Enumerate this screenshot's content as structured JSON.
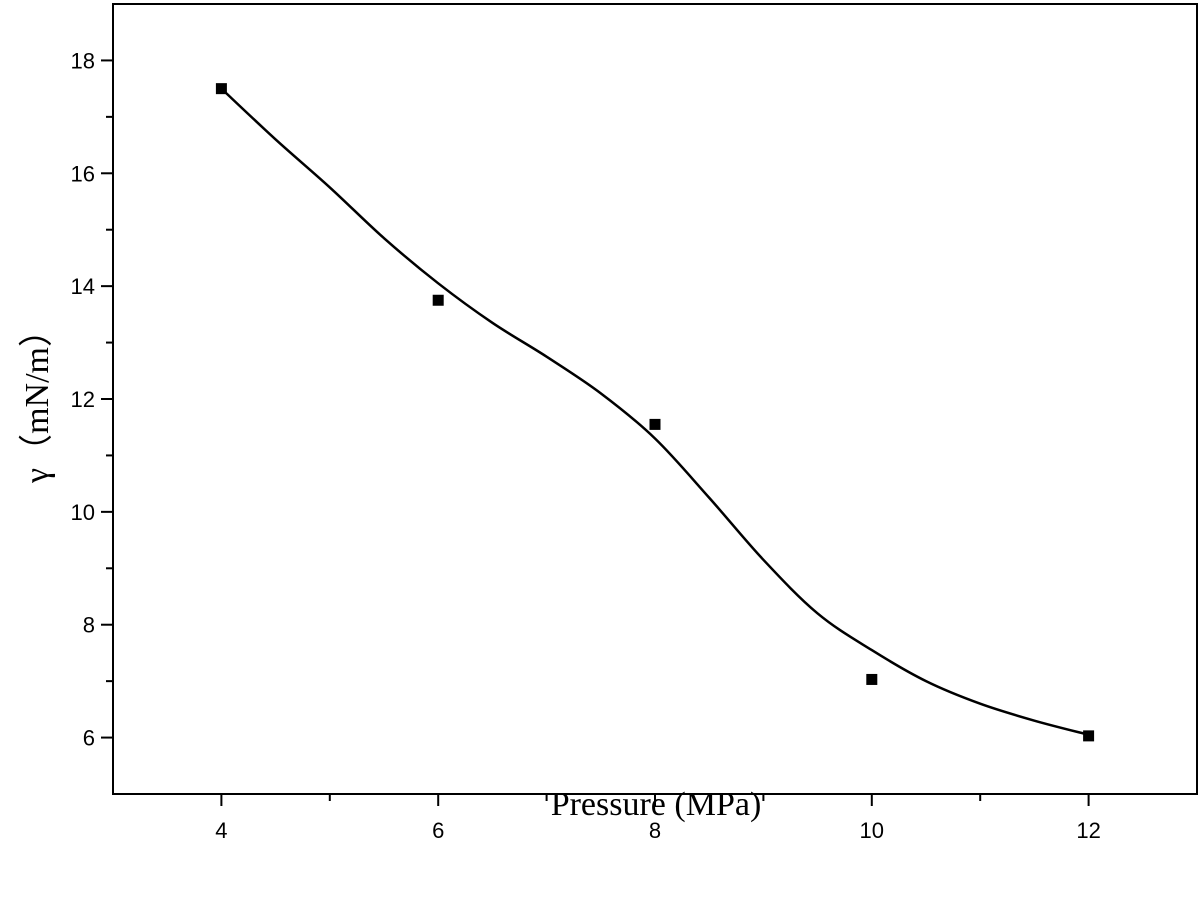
{
  "chart_data": {
    "type": "scatter",
    "xlabel": "Pressure (MPa)",
    "ylabel": "γ（mN/m）",
    "xlim": [
      3,
      13
    ],
    "ylim": [
      5,
      19
    ],
    "x_ticks": [
      4,
      6,
      8,
      10,
      12
    ],
    "y_ticks": [
      6,
      8,
      10,
      12,
      14,
      16,
      18
    ],
    "x_minor_ticks": [
      5,
      7,
      9,
      11
    ],
    "y_minor_ticks": [
      7,
      9,
      11,
      13,
      15,
      17
    ],
    "grid": false,
    "series": [
      {
        "marker": "square",
        "color": "#000000",
        "points": [
          {
            "x": 4,
            "y": 17.5
          },
          {
            "x": 6,
            "y": 13.75
          },
          {
            "x": 8,
            "y": 11.55
          },
          {
            "x": 10,
            "y": 7.03
          },
          {
            "x": 12,
            "y": 6.03
          }
        ]
      }
    ],
    "fit_curve": {
      "style": "smooth solid line",
      "color": "#000000",
      "points": [
        {
          "x": 4.0,
          "y": 17.5
        },
        {
          "x": 4.5,
          "y": 16.6
        },
        {
          "x": 5.0,
          "y": 15.75
        },
        {
          "x": 5.5,
          "y": 14.85
        },
        {
          "x": 6.0,
          "y": 14.05
        },
        {
          "x": 6.5,
          "y": 13.35
        },
        {
          "x": 7.0,
          "y": 12.75
        },
        {
          "x": 7.5,
          "y": 12.1
        },
        {
          "x": 8.0,
          "y": 11.3
        },
        {
          "x": 8.5,
          "y": 10.25
        },
        {
          "x": 9.0,
          "y": 9.15
        },
        {
          "x": 9.5,
          "y": 8.2
        },
        {
          "x": 10.0,
          "y": 7.55
        },
        {
          "x": 10.5,
          "y": 7.0
        },
        {
          "x": 11.0,
          "y": 6.6
        },
        {
          "x": 11.5,
          "y": 6.3
        },
        {
          "x": 12.0,
          "y": 6.05
        }
      ]
    }
  }
}
